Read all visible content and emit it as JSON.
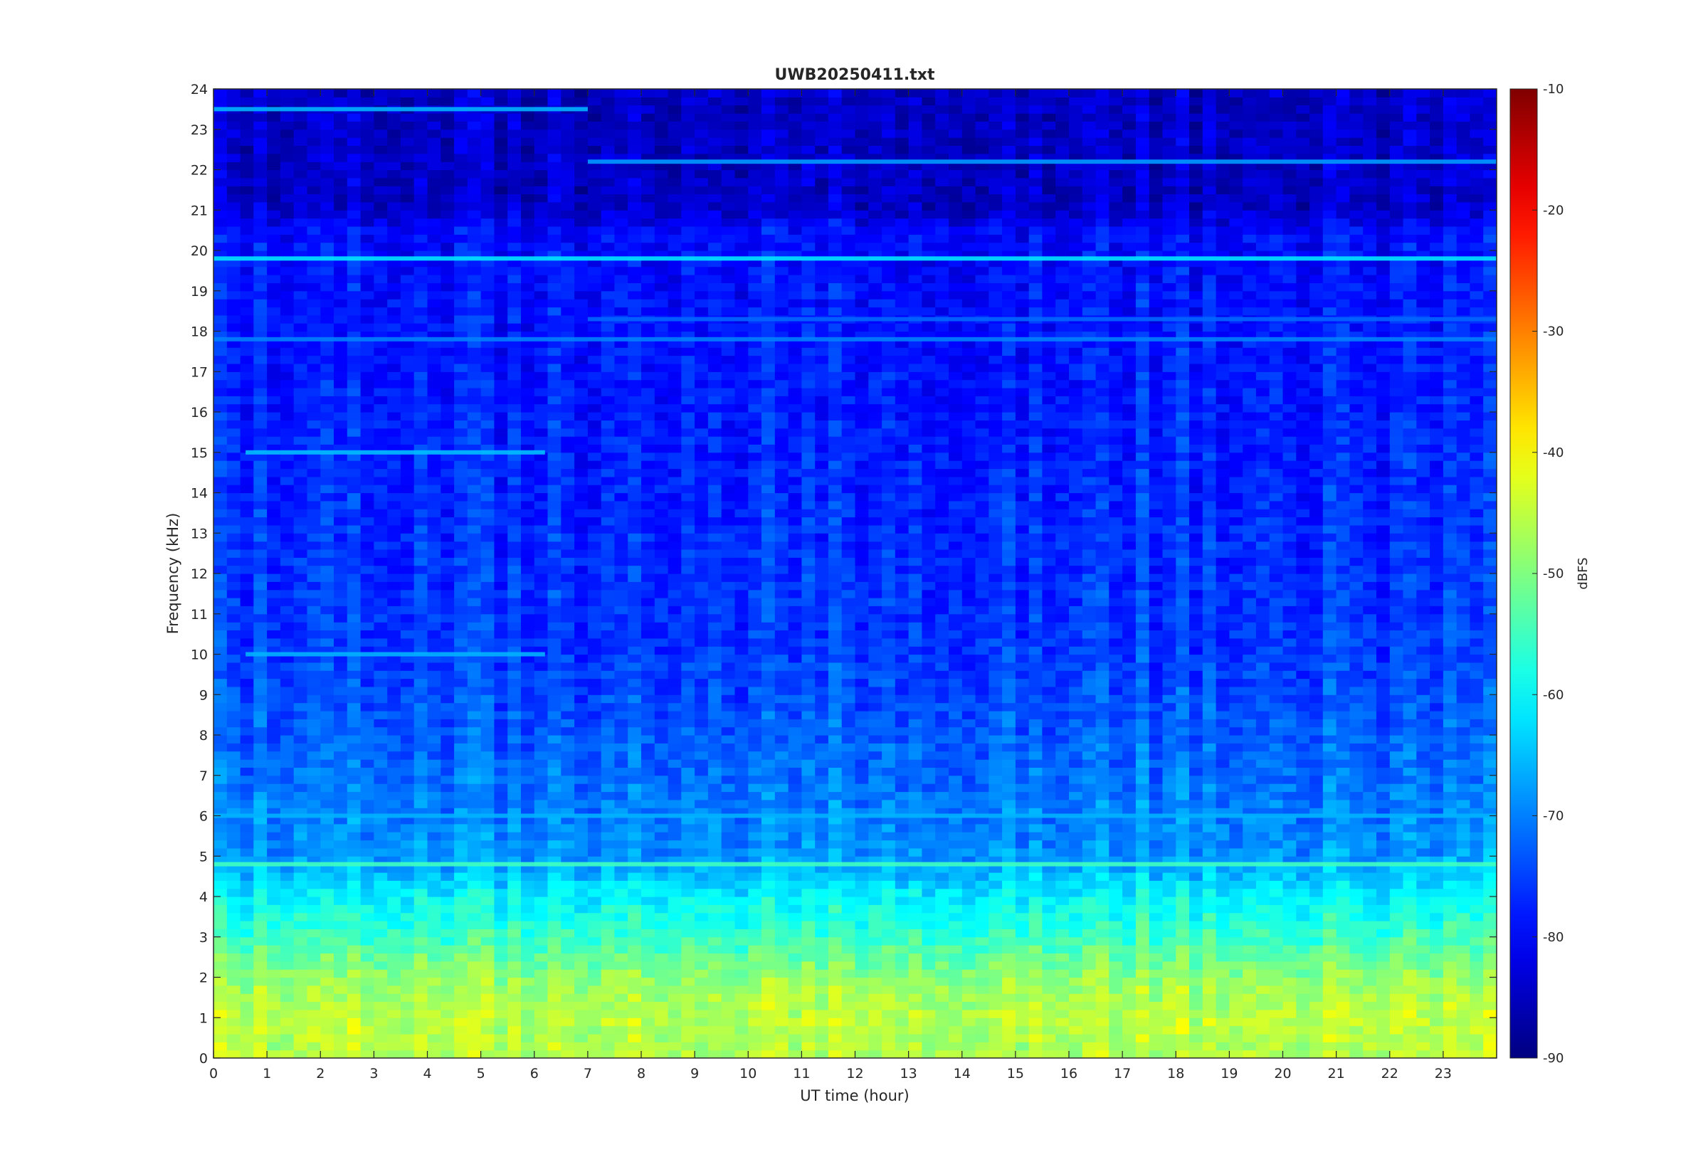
{
  "chart_data": {
    "type": "heatmap",
    "title": "UWB20250411.txt",
    "xlabel": "UT time (hour)",
    "ylabel": "Frequency (kHz)",
    "xlim": [
      0,
      24
    ],
    "ylim": [
      0,
      24
    ],
    "x_ticks": [
      0,
      1,
      2,
      3,
      4,
      5,
      6,
      7,
      8,
      9,
      10,
      11,
      12,
      13,
      14,
      15,
      16,
      17,
      18,
      19,
      20,
      21,
      22,
      23
    ],
    "y_ticks": [
      0,
      1,
      2,
      3,
      4,
      5,
      6,
      7,
      8,
      9,
      10,
      11,
      12,
      13,
      14,
      15,
      16,
      17,
      18,
      19,
      20,
      21,
      22,
      23,
      24
    ],
    "colormap": "jet",
    "colorbar": {
      "label": "dBFS",
      "range": [
        -90,
        -10
      ],
      "ticks": [
        -90,
        -80,
        -70,
        -60,
        -50,
        -40,
        -30,
        -20,
        -10
      ]
    },
    "grid": false,
    "features": [
      {
        "desc": "steady tone",
        "freq_khz": 19.8,
        "t_start": 0,
        "t_end": 24,
        "dbfs": -62
      },
      {
        "desc": "tone",
        "freq_khz": 22.2,
        "t_start": 7,
        "t_end": 24,
        "dbfs": -68
      },
      {
        "desc": "tone",
        "freq_khz": 17.8,
        "t_start": 0,
        "t_end": 24,
        "dbfs": -70
      },
      {
        "desc": "tone",
        "freq_khz": 18.3,
        "t_start": 7,
        "t_end": 24,
        "dbfs": -72
      },
      {
        "desc": "tone",
        "freq_khz": 23.5,
        "t_start": 0,
        "t_end": 7,
        "dbfs": -66
      },
      {
        "desc": "tone bursts",
        "freq_khz": 15.0,
        "t_start": 0.6,
        "t_end": 6.2,
        "dbfs": -65
      },
      {
        "desc": "tone bursts",
        "freq_khz": 10.0,
        "t_start": 0.6,
        "t_end": 6.2,
        "dbfs": -66
      },
      {
        "desc": "tone",
        "freq_khz": 6.0,
        "t_start": 0,
        "t_end": 24,
        "dbfs": -66
      },
      {
        "desc": "tone",
        "freq_khz": 4.8,
        "t_start": 0,
        "t_end": 24,
        "dbfs": -55
      }
    ],
    "background_profile": [
      {
        "freq_khz": 0.0,
        "dbfs": -46
      },
      {
        "freq_khz": 1.0,
        "dbfs": -45
      },
      {
        "freq_khz": 2.0,
        "dbfs": -48
      },
      {
        "freq_khz": 3.0,
        "dbfs": -55
      },
      {
        "freq_khz": 4.0,
        "dbfs": -60
      },
      {
        "freq_khz": 5.0,
        "dbfs": -68
      },
      {
        "freq_khz": 7.0,
        "dbfs": -71
      },
      {
        "freq_khz": 10.0,
        "dbfs": -75
      },
      {
        "freq_khz": 15.0,
        "dbfs": -77
      },
      {
        "freq_khz": 20.5,
        "dbfs": -79
      },
      {
        "freq_khz": 21.0,
        "dbfs": -84
      },
      {
        "freq_khz": 24.0,
        "dbfs": -84
      }
    ]
  }
}
